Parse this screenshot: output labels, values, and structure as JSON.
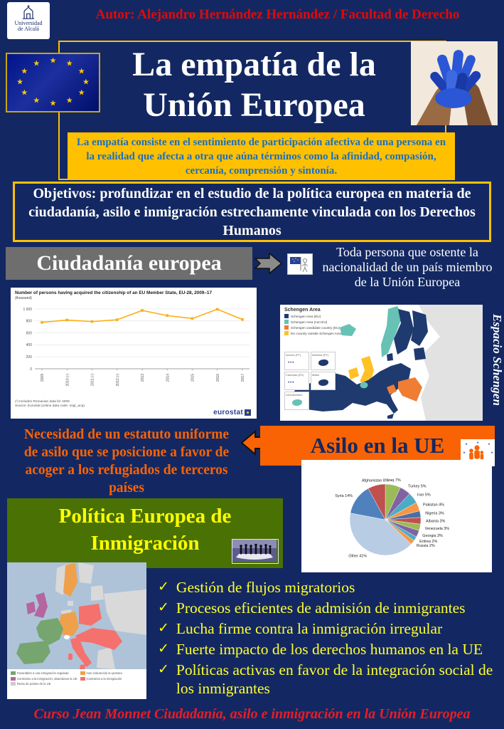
{
  "poster": {
    "logo": {
      "name_line1": "Universidad",
      "name_line2": "de Alcalá"
    },
    "author_line": "Autor: Alejandro Hernández Hernández / Facultad de Derecho",
    "title_line1": "La empatía de la",
    "title_line2": "Unión Europea",
    "definition_text": "La empatía consiste en el sentimiento de participación afectiva de una persona en la realidad que afecta a otra que aúna términos como la afinidad, compasión, cercanía, comprensión y sintonía.",
    "objectives_text": "Objetivos: profundizar en el estudio de la política europea en materia de ciudadanía, asilo e inmigración estrechamente vinculada con los Derechos Humanos",
    "footer_text": "Curso Jean Monnet Ciudadanía, asilo e inmigración en la Unión Europea",
    "colors": {
      "background": "#132862",
      "gold": "#FFC000",
      "author_red": "#E00A0A",
      "definition_blue": "#1B6FC0",
      "orange": "#F96304",
      "green": "#4A7104",
      "yellow_text": "#FFFF00",
      "footer_red": "#EC1C24",
      "gray_heading_bg": "#6E6E6E"
    }
  },
  "citizenship_section": {
    "heading": "Ciudadanía europea",
    "note": "Toda persona que ostente la nacionalidad de un país miembro de la Unión Europea"
  },
  "schengen_section": {
    "vertical_label": "Espacio Schengen",
    "map_title": "Schengen Area",
    "legend": [
      {
        "label": "Schengen Area (EU)",
        "color": "#1F3A6E"
      },
      {
        "label": "Schengen Area (non-EU)",
        "color": "#67C1B5"
      },
      {
        "label": "Schengen candidate country (EU)",
        "color": "#EF7D33"
      },
      {
        "label": "EU country outside Schengen Area",
        "color": "#FFC125"
      }
    ],
    "insets": [
      {
        "label": "Azores (PT)",
        "type": "dots",
        "color": "#1F3A6E"
      },
      {
        "label": "Madeira (PT)",
        "type": "blob",
        "color": "#1F3A6E"
      },
      {
        "label": "Canarias (ES)",
        "type": "dots",
        "color": "#1F3A6E"
      },
      {
        "label": "Malta",
        "type": "blob",
        "color": "#1F3A6E"
      },
      {
        "label": "Liechtenstein",
        "type": "blob",
        "color": "#67C1B5"
      }
    ]
  },
  "asylum_section": {
    "statement": "Necesidad de un estatuto uniforme de asilo que se posicione a favor de acoger a los refugiados de terceros países",
    "heading": "Asilo en la UE"
  },
  "immigration_section": {
    "heading_line1": "Política Europea de",
    "heading_line2": "Inmigración",
    "bullets": [
      "Gestión de flujos migratorios",
      "Procesos eficientes de admisión de inmigrantes",
      "Lucha firme contra la inmigración irregular",
      "Fuerte impacto de los derechos humanos en la UE",
      "Políticas activas en favor de la integración social de los inmigrantes"
    ],
    "map_legend": [
      {
        "label": "Favorables a una inmigración regulada",
        "color": "#76A570"
      },
      {
        "label": "Contrarios a la inmigración, abandonan la UE",
        "color": "#B565A0"
      },
      {
        "label": "Resto de países de la UE",
        "color": "#CCCCCC"
      },
      {
        "label": "Han endurecido su postura",
        "color": "#EFA04B"
      },
      {
        "label": "Contrarios a la inmigración",
        "color": "#F4716E"
      }
    ]
  },
  "chart_data": [
    {
      "type": "line",
      "title": "Number of persons having acquired the citizenship of an EU Member State, EU-28, 2009–17",
      "subtitle": "(thousand)",
      "x": [
        "2009",
        "2010 (¹)",
        "2011 (¹)",
        "2012 (¹)",
        "2013",
        "2014",
        "2015",
        "2016",
        "2017"
      ],
      "values": [
        776,
        815,
        790,
        820,
        975,
        890,
        840,
        995,
        825
      ],
      "ylim": [
        0,
        1000
      ],
      "yticks": [
        0,
        200,
        400,
        600,
        800,
        1000
      ],
      "line_color": "#FBAF17",
      "grid": true,
      "legend_position": "none",
      "footnotes": [
        "(¹) Includes Romanian data for 2009",
        "Source: Eurostat (online data code: migr_acq)"
      ],
      "brand": "eurostat"
    },
    {
      "type": "pie",
      "start_angle_deg": -90,
      "direction": "clockwise",
      "slices": [
        {
          "label": "Iraq 7%",
          "value": 7,
          "color": "#9BBB59"
        },
        {
          "label": "Turkey 5%",
          "value": 5,
          "color": "#8064A2"
        },
        {
          "label": "Iran 5%",
          "value": 5,
          "color": "#4BACC6"
        },
        {
          "label": "Pakistan 4%",
          "value": 4,
          "color": "#F79646"
        },
        {
          "label": "Nigeria 3%",
          "value": 3,
          "color": "#4A6FA5"
        },
        {
          "label": "Albania 3%",
          "value": 3,
          "color": "#C0504D"
        },
        {
          "label": "Venezuela 3%",
          "value": 3,
          "color": "#9BBB59"
        },
        {
          "label": "Georgia 3%",
          "value": 3,
          "color": "#8064A2"
        },
        {
          "label": "Eritrea 2%",
          "value": 2,
          "color": "#4BACC6"
        },
        {
          "label": "Russia 2%",
          "value": 2,
          "color": "#F79646"
        },
        {
          "label": "Other 41%",
          "value": 41,
          "color": "#B8CCE4"
        },
        {
          "label": "Syria 14%",
          "value": 14,
          "color": "#4F81BD"
        },
        {
          "label": "Afghanistan 8%",
          "value": 8,
          "color": "#C0504D"
        }
      ]
    }
  ]
}
